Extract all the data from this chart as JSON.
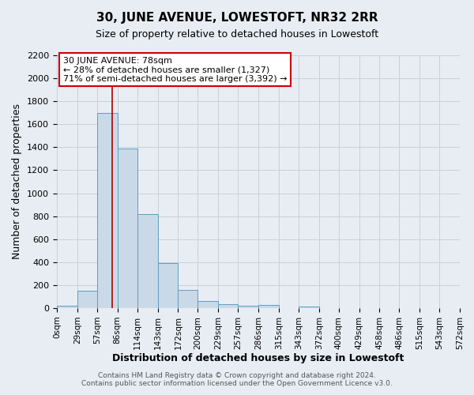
{
  "title": "30, JUNE AVENUE, LOWESTOFT, NR32 2RR",
  "subtitle": "Size of property relative to detached houses in Lowestoft",
  "xlabel": "Distribution of detached houses by size in Lowestoft",
  "ylabel": "Number of detached properties",
  "bin_edges": [
    0,
    29,
    57,
    86,
    114,
    143,
    172,
    200,
    229,
    257,
    286,
    315,
    343,
    372,
    400,
    429,
    458,
    486,
    515,
    543,
    572
  ],
  "bar_heights": [
    20,
    150,
    1700,
    1390,
    820,
    390,
    160,
    65,
    35,
    20,
    25,
    0,
    15,
    0,
    0,
    0,
    0,
    0,
    0,
    0
  ],
  "bar_color": "#c9d9e8",
  "bar_edge_color": "#5f9ec0",
  "vline_x": 78,
  "vline_color": "#aa0000",
  "ylim": [
    0,
    2200
  ],
  "yticks": [
    0,
    200,
    400,
    600,
    800,
    1000,
    1200,
    1400,
    1600,
    1800,
    2000,
    2200
  ],
  "grid_color": "#c8d0da",
  "background_color": "#e8edf4",
  "annotation_title": "30 JUNE AVENUE: 78sqm",
  "annotation_line1": "← 28% of detached houses are smaller (1,327)",
  "annotation_line2": "71% of semi-detached houses are larger (3,392) →",
  "annotation_box_color": "#ffffff",
  "annotation_box_edge": "#cc0000",
  "footer1": "Contains HM Land Registry data © Crown copyright and database right 2024.",
  "footer2": "Contains public sector information licensed under the Open Government Licence v3.0."
}
